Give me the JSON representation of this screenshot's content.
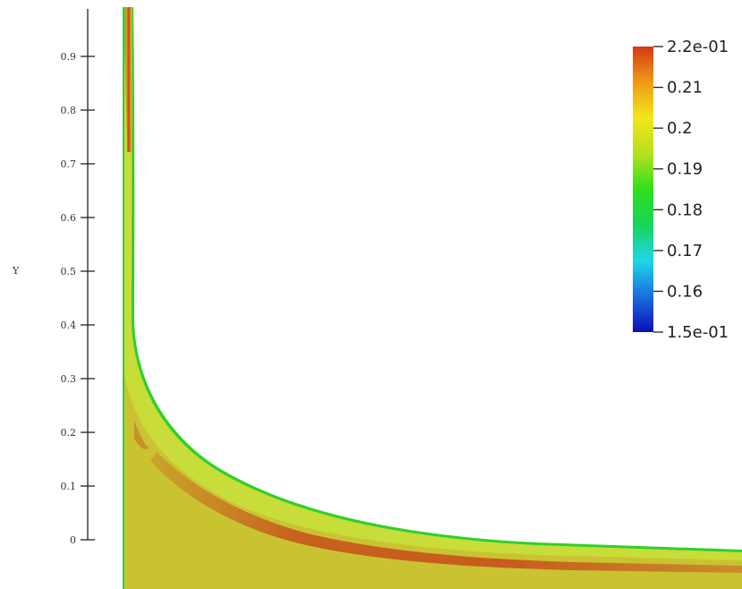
{
  "chart_data": {
    "type": "heatmap",
    "title": "",
    "xlabel": "",
    "ylabel": "Y",
    "ylim": [
      0,
      1
    ],
    "y_ticks": [
      "0",
      "0.1",
      "0.2",
      "0.3",
      "0.4",
      "0.5",
      "0.6",
      "0.7",
      "0.8",
      "0.9"
    ],
    "y_tick_values": [
      0,
      0.1,
      0.2,
      0.3,
      0.4,
      0.5,
      0.6,
      0.7,
      0.8,
      0.9
    ],
    "colorbar": {
      "min": 0.15,
      "max": 0.22,
      "tick_labels": [
        "2.2e-01",
        "0.21",
        "0.2",
        "0.19",
        "0.18",
        "0.17",
        "0.16",
        "1.5e-01"
      ],
      "tick_values": [
        0.22,
        0.21,
        0.2,
        0.19,
        0.18,
        0.17,
        0.16,
        0.15
      ],
      "colors": [
        "#0b10b8",
        "#1a6ee0",
        "#1fd6e8",
        "#19d45a",
        "#2ee01c",
        "#b6e01e",
        "#f2e61a",
        "#f09a18",
        "#d33a12"
      ]
    },
    "field_colors": {
      "background": "#c8dc3a",
      "core": "#c9a52a",
      "ridge": "#c64a1a",
      "edge": "#2fd02b"
    },
    "grid": false
  }
}
